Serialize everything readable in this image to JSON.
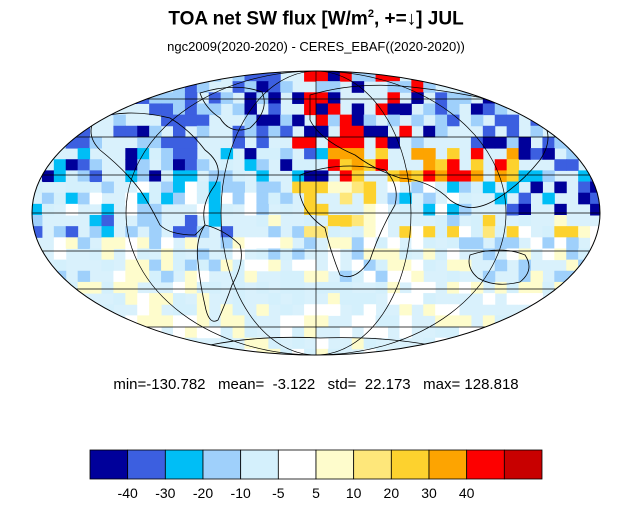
{
  "header": {
    "title_main": "TOA net SW flux [W/m",
    "title_sup": "2",
    "title_tail": ", +=↓]  JUL",
    "subtitle": "ngc2009(2020-2020) - CERES_EBAF((2020-2020))"
  },
  "stats": {
    "line": "min=-130.782   mean=  -3.122   std=  22.173   max= 128.818"
  },
  "colorbar": {
    "colors": [
      "#00009a",
      "#3c5fe0",
      "#00bef6",
      "#9fd0fb",
      "#d4f0fc",
      "#ffffff",
      "#fefccc",
      "#fee77a",
      "#fdd22e",
      "#fda401",
      "#fd0000",
      "#c80000"
    ],
    "labels": [
      "-40",
      "-30",
      "-20",
      "-10",
      "-5",
      "5",
      "10",
      "20",
      "30",
      "40"
    ]
  },
  "map": {
    "projection": "Mollweide",
    "month": "JUL"
  }
}
